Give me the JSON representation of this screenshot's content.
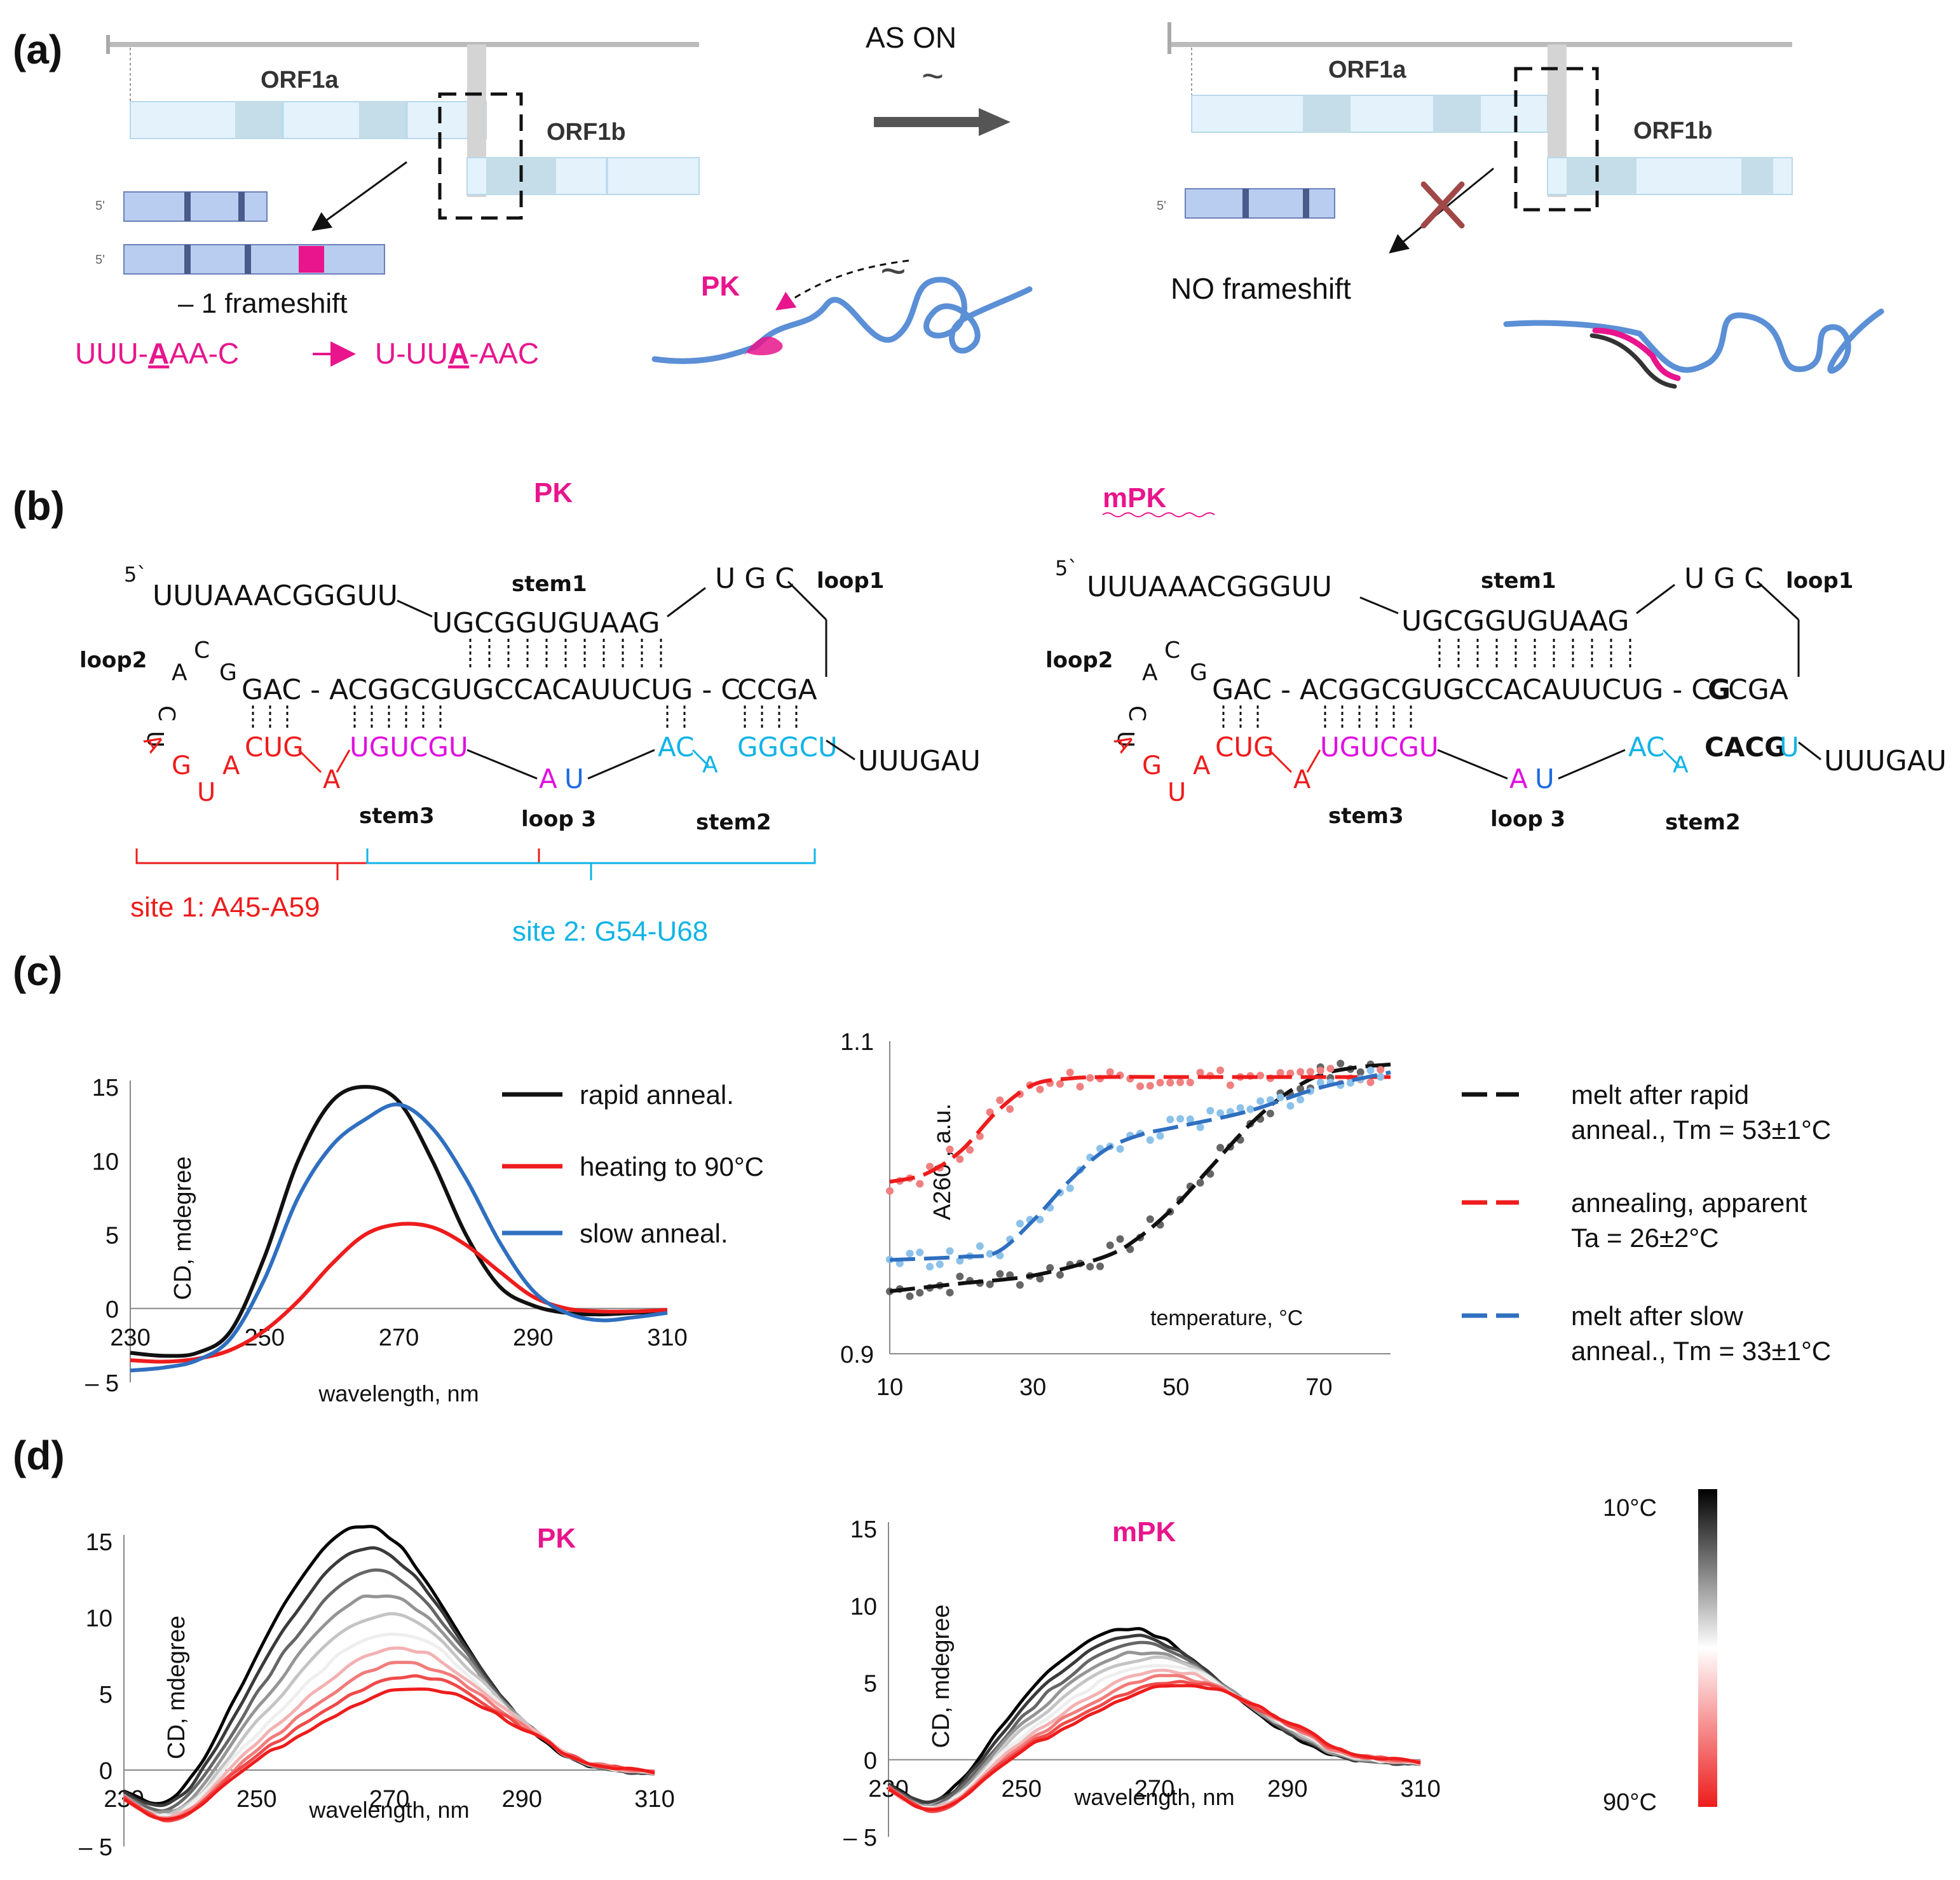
{
  "colors": {
    "magenta": "#e8158c",
    "red": "#ee1c1c",
    "cyan": "#10b4e6",
    "blue": "#2f6fc0",
    "black": "#111111",
    "lightblue": "#6fb3e0",
    "pink": "#f07070",
    "gray": "#666666"
  },
  "panel_a": {
    "label": "(a)",
    "orf1a": "ORF1a",
    "orf1b": "ORF1b",
    "five_prime": "5'",
    "frameshift": "– 1 frameshift",
    "seq_before_1": "UUU-",
    "seq_before_A": "A",
    "seq_before_2": "AA-C",
    "seq_after_1": "U-UU",
    "seq_after_A": "A",
    "seq_after_2": "-AAC",
    "pk": "PK",
    "as_on": "AS ON",
    "tilde": "~",
    "no_frameshift": "NO frameshift"
  },
  "panel_b": {
    "label": "(b)",
    "pk_title": "PK",
    "mpk_title": "mPK",
    "five_prime": "5`",
    "seq5": "UUUAAACGGGUU",
    "stem1_label": "stem1",
    "stem1_top": "UGCGGUGUAAG",
    "loop1_seq": "U G C",
    "loop1_label": "loop1",
    "loop2_label": "loop2",
    "loop2_C1": "C",
    "loop2_A": "A",
    "loop2_C2": "C",
    "loop2_G": "G",
    "loop2_U": "U",
    "main_left": "GAC - ACGGCGUGCCACAUUCUG - C",
    "main_pk_tail": "CCGA",
    "main_mpk_G": "G",
    "main_mpk_tail": "CGA",
    "red_A1": "A",
    "red_G": "G",
    "red_U": "U",
    "red_A2": "A",
    "red_CUG": "CUG",
    "red_A3": "A",
    "mag_UGUCGU": "UGUCGU",
    "mag_A": "A",
    "mag_U": "U",
    "cyan_AC": "AC",
    "cyan_A": "A",
    "cyan_GGGCU": "GGGCU",
    "mpk_CACG": "CACG",
    "mpk_U": "U",
    "tail": "UUUGAU",
    "stem3_label": "stem3",
    "loop3_label": "loop 3",
    "stem2_label": "stem2",
    "site1": "site 1:  A45-A59",
    "site2": "site 2: G54-U68"
  },
  "panel_c": {
    "label": "(c)",
    "legend_cd": [
      "rapid anneal.",
      "heating to 90°C",
      "slow anneal."
    ],
    "legend_melt": [
      [
        "melt after rapid",
        "anneal., Tm = 53±1°C"
      ],
      [
        "annealing, apparent",
        "Ta = 26±2°C"
      ],
      [
        "melt after slow",
        "anneal., Tm = 33±1°C"
      ]
    ]
  },
  "panel_d": {
    "label": "(d)",
    "pk_title": "PK",
    "mpk_title": "mPK",
    "scale_top": "10°C",
    "scale_bottom": "90°C"
  },
  "chart_data": [
    {
      "id": "c-left",
      "type": "line",
      "title": "",
      "xlabel": "wavelength, nm",
      "ylabel": "CD, mdegree",
      "xlim": [
        230,
        310
      ],
      "ylim": [
        -5,
        15
      ],
      "xticks": [
        230,
        250,
        270,
        290,
        310
      ],
      "yticks": [
        -5,
        0,
        5,
        10,
        15
      ],
      "yticklabels": [
        "– 5",
        "0",
        "5",
        "10",
        "15"
      ],
      "series": [
        {
          "name": "rapid anneal.",
          "color": "#111111",
          "x": [
            230,
            235,
            240,
            245,
            250,
            255,
            260,
            265,
            270,
            275,
            280,
            285,
            290,
            295,
            300,
            305,
            310
          ],
          "y": [
            -3.0,
            -3.2,
            -3.0,
            -1.5,
            3.5,
            10.0,
            14.0,
            15.0,
            14.0,
            10.0,
            5.0,
            1.5,
            0.2,
            -0.3,
            -0.4,
            -0.3,
            -0.2
          ]
        },
        {
          "name": "heating to 90°C",
          "color": "#ee1c1c",
          "x": [
            230,
            235,
            240,
            245,
            250,
            255,
            260,
            265,
            270,
            275,
            280,
            285,
            290,
            295,
            300,
            305,
            310
          ],
          "y": [
            -3.5,
            -3.6,
            -3.4,
            -2.8,
            -1.5,
            0.5,
            3.0,
            5.0,
            5.7,
            5.5,
            4.3,
            2.5,
            0.8,
            0.0,
            -0.2,
            -0.2,
            -0.1
          ]
        },
        {
          "name": "slow anneal.",
          "color": "#2f6fc0",
          "x": [
            230,
            235,
            240,
            245,
            250,
            255,
            260,
            265,
            270,
            275,
            280,
            285,
            290,
            295,
            300,
            305,
            310
          ],
          "y": [
            -4.2,
            -4.0,
            -3.5,
            -2.0,
            2.0,
            7.5,
            11.0,
            12.8,
            13.8,
            12.2,
            8.8,
            4.5,
            1.2,
            -0.3,
            -0.8,
            -0.6,
            -0.3
          ]
        }
      ]
    },
    {
      "id": "c-right",
      "type": "line",
      "xlabel": "temperature, °C",
      "ylabel": "A260 , a.u.",
      "xlim": [
        10,
        80
      ],
      "ylim": [
        0.9,
        1.1
      ],
      "xticks": [
        10,
        30,
        50,
        70
      ],
      "yticks": [
        0.9,
        1.1
      ],
      "series": [
        {
          "name": "melt after rapid anneal., Tm = 53±1°C",
          "color": "#111111",
          "x": [
            10,
            20,
            30,
            40,
            45,
            50,
            55,
            60,
            65,
            70,
            75,
            80
          ],
          "y": [
            0.94,
            0.945,
            0.95,
            0.962,
            0.975,
            0.995,
            1.02,
            1.045,
            1.065,
            1.078,
            1.083,
            1.085
          ]
        },
        {
          "name": "annealing, apparent Ta = 26±2°C",
          "color": "#ee1c1c",
          "x": [
            10,
            15,
            20,
            25,
            30,
            35,
            40,
            50,
            60,
            70,
            80
          ],
          "y": [
            1.01,
            1.015,
            1.03,
            1.055,
            1.072,
            1.076,
            1.077,
            1.077,
            1.077,
            1.077,
            1.077
          ]
        },
        {
          "name": "melt after slow anneal., Tm = 33±1°C",
          "color": "#2f6fc0",
          "x": [
            10,
            20,
            25,
            30,
            35,
            40,
            45,
            50,
            60,
            70,
            80
          ],
          "y": [
            0.96,
            0.962,
            0.965,
            0.985,
            1.01,
            1.03,
            1.04,
            1.045,
            1.055,
            1.07,
            1.08
          ]
        }
      ]
    },
    {
      "id": "d-pk",
      "type": "line",
      "title": "PK",
      "xlabel": "wavelength, nm",
      "ylabel": "CD, mdegree",
      "xlim": [
        230,
        310
      ],
      "ylim": [
        -5,
        15
      ],
      "xticks": [
        230,
        250,
        270,
        290,
        310
      ],
      "yticks": [
        -5,
        0,
        5,
        10,
        15
      ],
      "yticklabels": [
        "– 5",
        "0",
        "5",
        "10",
        "15"
      ],
      "peaks": [
        16.0,
        14.5,
        13.0,
        11.5,
        10.2,
        9.0,
        8.0,
        7.0,
        6.2,
        5.4
      ],
      "colors": [
        "#000000",
        "#3a3a3a",
        "#666666",
        "#959595",
        "#c4c4c4",
        "#eeeeee",
        "#f3b2b2",
        "#f27b7b",
        "#f04a4a",
        "#ee1c1c"
      ]
    },
    {
      "id": "d-mpk",
      "type": "line",
      "title": "mPK",
      "xlabel": "wavelength, nm",
      "ylabel": "CD, mdegree",
      "xlim": [
        230,
        310
      ],
      "ylim": [
        -5,
        15
      ],
      "xticks": [
        230,
        250,
        270,
        290,
        310
      ],
      "yticks": [
        -5,
        0,
        5,
        10,
        15
      ],
      "yticklabels": [
        "– 5",
        "0",
        "5",
        "10",
        "15"
      ],
      "peaks": [
        8.5,
        8.0,
        7.5,
        7.0,
        6.6,
        6.2,
        5.8,
        5.4,
        5.1,
        4.9
      ],
      "colors": [
        "#000000",
        "#3a3a3a",
        "#666666",
        "#959595",
        "#c4c4c4",
        "#eeeeee",
        "#f3b2b2",
        "#f27b7b",
        "#f04a4a",
        "#ee1c1c"
      ]
    }
  ]
}
